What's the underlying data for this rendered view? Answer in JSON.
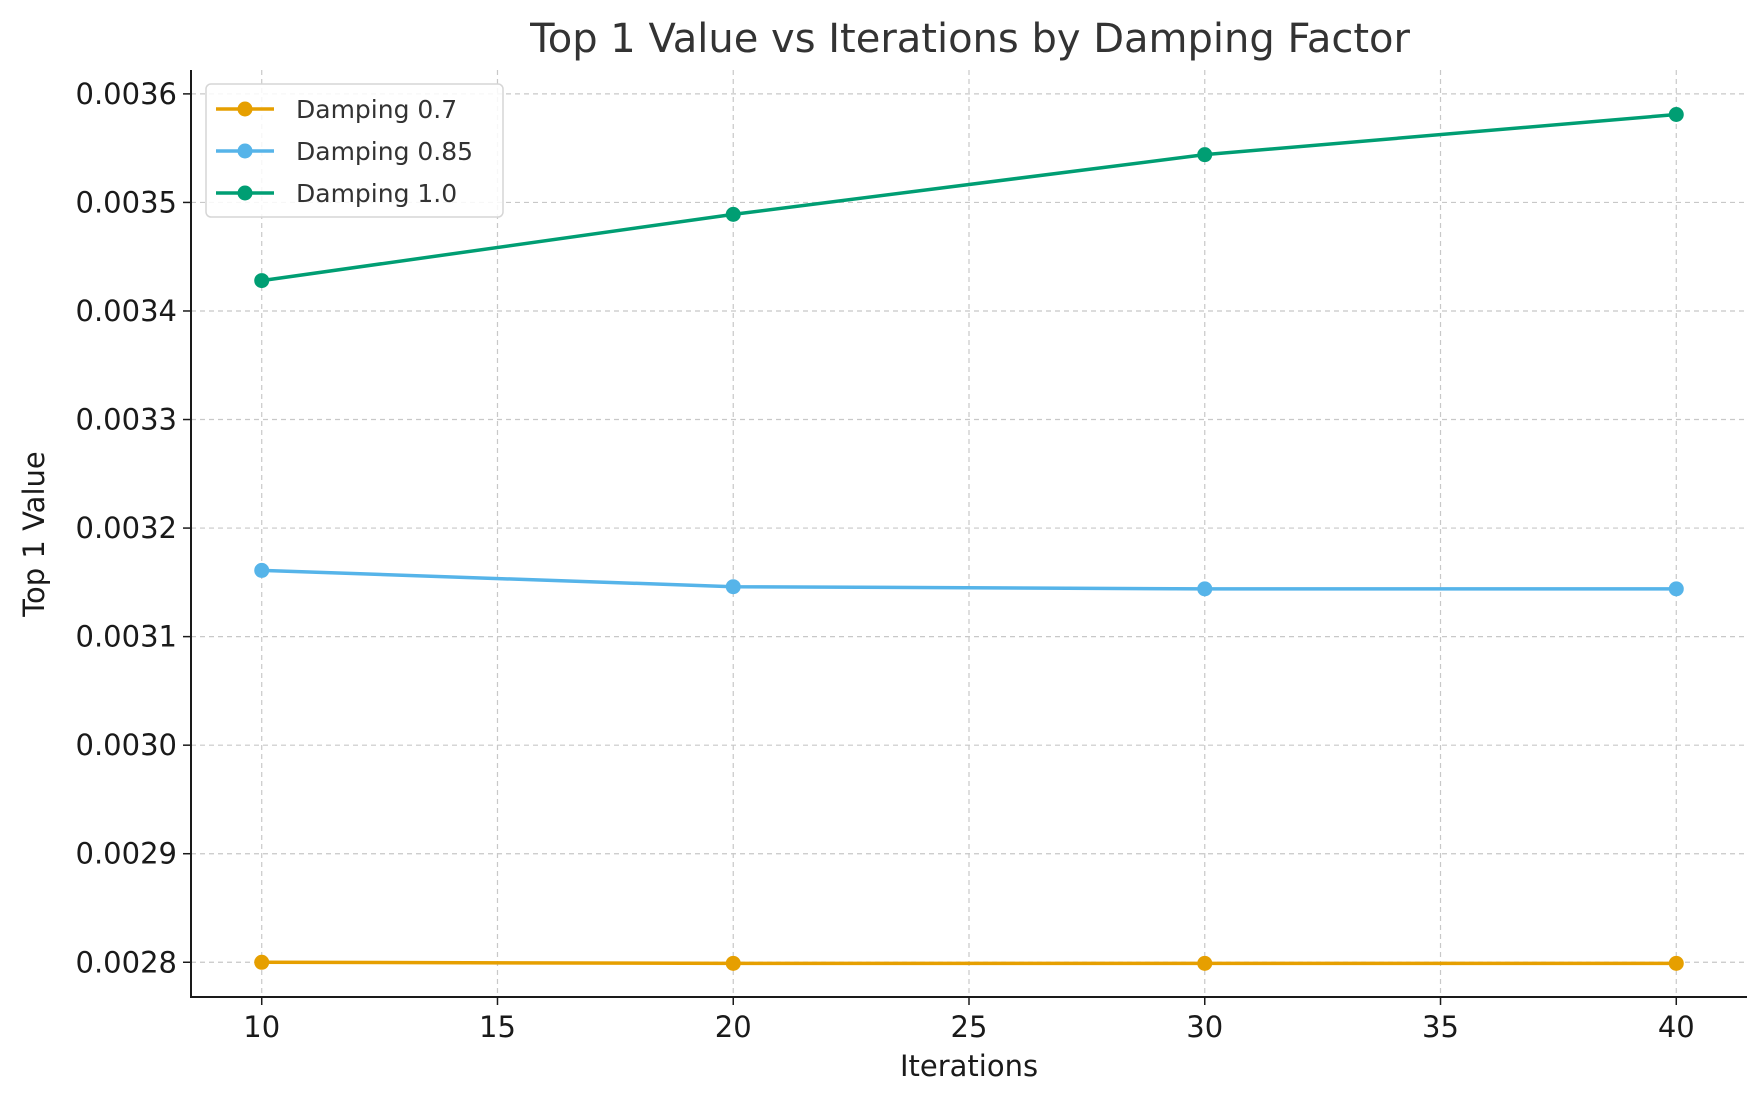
{
  "chart_data": {
    "type": "line",
    "title": "Top 1 Value vs Iterations by Damping Factor",
    "xlabel": "Iterations",
    "ylabel": "Top 1 Value",
    "x": [
      10,
      20,
      30,
      40
    ],
    "xlim": [
      8.5,
      41.5
    ],
    "ylim": [
      0.002768,
      0.003622
    ],
    "xticks": [
      10,
      15,
      20,
      25,
      30,
      35,
      40
    ],
    "yticks": [
      0.0028,
      0.0029,
      0.003,
      0.0031,
      0.0032,
      0.0033,
      0.0034,
      0.0035,
      0.0036
    ],
    "ytick_labels": [
      "0.0028",
      "0.0029",
      "0.0030",
      "0.0031",
      "0.0032",
      "0.0033",
      "0.0034",
      "0.0035",
      "0.0036"
    ],
    "grid": true,
    "legend_position": "top-left",
    "series": [
      {
        "name": "Damping 0.7",
        "color": "#E69F00",
        "values": [
          0.0028,
          0.002799,
          0.002799,
          0.002799
        ]
      },
      {
        "name": "Damping 0.85",
        "color": "#56B4E9",
        "values": [
          0.003161,
          0.003146,
          0.003144,
          0.003144
        ]
      },
      {
        "name": "Damping 1.0",
        "color": "#009E73",
        "values": [
          0.003428,
          0.003489,
          0.003544,
          0.003581
        ]
      }
    ]
  }
}
